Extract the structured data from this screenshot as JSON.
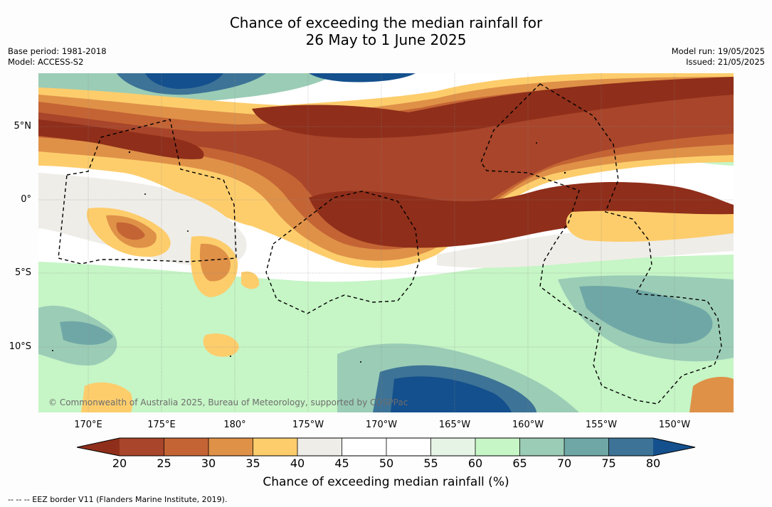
{
  "title": {
    "line1": "Chance of exceeding the median rainfall for",
    "line2": "26 May to 1 June 2025"
  },
  "meta": {
    "base_period": "Base period: 1981-2018",
    "model": "Model: ACCESS-S2",
    "model_run": "Model run: 19/05/2025",
    "issued": "Issued: 21/05/2025"
  },
  "map": {
    "lat_labels": [
      "5°N",
      "0°",
      "5°S",
      "10°S"
    ],
    "lon_labels": [
      "170°E",
      "175°E",
      "180°",
      "175°W",
      "170°W",
      "165°W",
      "160°W",
      "155°W",
      "150°W"
    ],
    "copyright": "© Commonwealth of Australia 2025, Bureau of Meteorology, supported by COSPPac"
  },
  "colorbar": {
    "title": "Chance of exceeding median rainfall (%)",
    "ticks": [
      "20",
      "25",
      "30",
      "35",
      "40",
      "45",
      "50",
      "55",
      "60",
      "65",
      "70",
      "75",
      "80"
    ],
    "colors": {
      "lt20": "#8f2e1a",
      "b20_25": "#a8452a",
      "b25_30": "#c46434",
      "b30_35": "#df9148",
      "b35_40": "#fdcd6c",
      "b40_45": "#efede8",
      "b45_50": "#ffffff",
      "b50_55": "#ffffff",
      "b55_60": "#e6f4e6",
      "b60_65": "#c6f5c6",
      "b65_70": "#9bccb6",
      "b70_75": "#6fa7a6",
      "b75_80": "#3d7396",
      "gt80": "#14508d"
    }
  },
  "footnote": "-- -- -- EEZ border V11 (Flanders Marine Institute, 2019)."
}
